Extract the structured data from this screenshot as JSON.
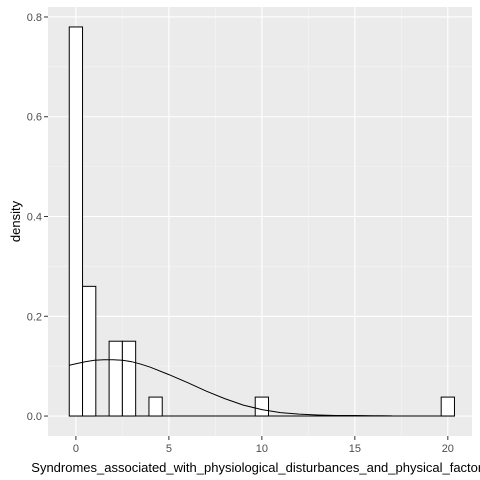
{
  "chart_data": {
    "type": "histogram",
    "xlabel": "Syndromes_associated_with_physiological_disturbances_and_physical_factors",
    "ylabel": "density",
    "xlim": [
      -1.5,
      21.3
    ],
    "ylim": [
      -0.04,
      0.82
    ],
    "x_ticks": [
      0,
      5,
      10,
      15,
      20
    ],
    "y_ticks": [
      0.0,
      0.2,
      0.4,
      0.6,
      0.8
    ],
    "y_tick_labels": [
      "0.0",
      "0.2",
      "0.4",
      "0.6",
      "0.8"
    ],
    "bin_width": 0.714,
    "bins": [
      {
        "x0": -0.357,
        "density": 0.78
      },
      {
        "x0": 0.357,
        "density": 0.26
      },
      {
        "x0": 1.071,
        "density": 0.0
      },
      {
        "x0": 1.786,
        "density": 0.15
      },
      {
        "x0": 2.5,
        "density": 0.15
      },
      {
        "x0": 3.214,
        "density": 0.0
      },
      {
        "x0": 3.929,
        "density": 0.038
      },
      {
        "x0": 9.643,
        "density": 0.038
      },
      {
        "x0": 19.643,
        "density": 0.038
      }
    ],
    "baseline_range": [
      -0.357,
      20.357
    ],
    "density_curve": {
      "x": [
        -0.357,
        0,
        0.5,
        1,
        1.5,
        2,
        2.5,
        3,
        3.5,
        4,
        5,
        6,
        7,
        8,
        9,
        10,
        11,
        12,
        13,
        14,
        15,
        16,
        17
      ],
      "y": [
        0.102,
        0.105,
        0.109,
        0.112,
        0.113,
        0.113,
        0.112,
        0.109,
        0.104,
        0.098,
        0.083,
        0.067,
        0.05,
        0.035,
        0.022,
        0.013,
        0.007,
        0.004,
        0.002,
        0.001,
        0.001,
        0.0006,
        0.0003
      ]
    },
    "grid": true,
    "colors": {
      "panel_background": "#ebebeb",
      "grid_major": "#ffffff",
      "grid_minor": "#f5f5f5",
      "bar_fill": "#ffffff",
      "bar_stroke": "#000000",
      "curve": "#000000"
    }
  }
}
